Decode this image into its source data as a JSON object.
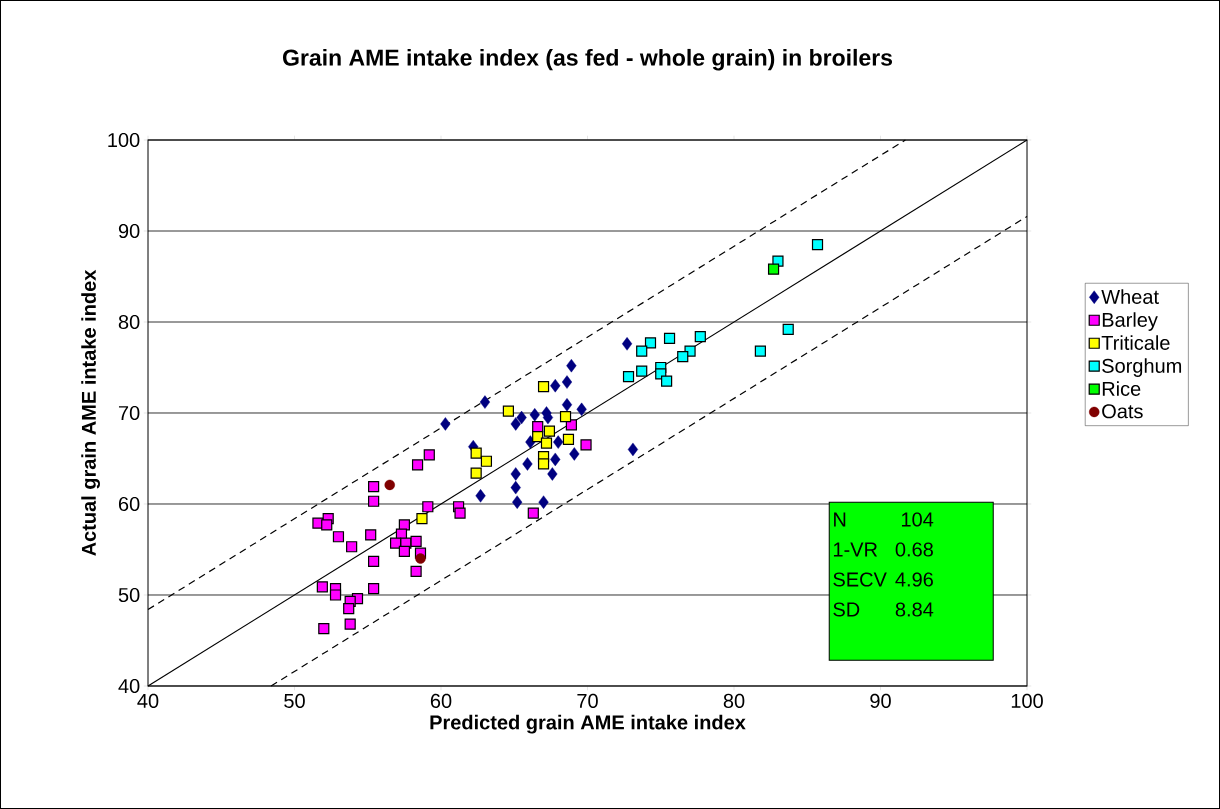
{
  "chart_data": {
    "type": "scatter",
    "title": "Grain AME intake index (as fed - whole grain) in broilers",
    "xlabel": "Predicted grain AME intake index",
    "ylabel": "Actual grain AME intake index",
    "xlim": [
      40,
      100
    ],
    "ylim": [
      40,
      100
    ],
    "xticks": [
      40,
      50,
      60,
      70,
      80,
      90,
      100
    ],
    "yticks": [
      40,
      50,
      60,
      70,
      80,
      90,
      100
    ],
    "grid": "y",
    "legend": "right",
    "annotations": [
      "N",
      "104",
      "1-VR",
      "0.68",
      "SECV",
      "4.96",
      "SD",
      "8.84"
    ],
    "series": [
      {
        "name": "Wheat",
        "color": "#000080",
        "marker": "diamond",
        "x": [
          60.3,
          63.0,
          68.9,
          68.6,
          67.8,
          72.7,
          62.2,
          65.1,
          65.5,
          66.4,
          67.2,
          67.3,
          68.6,
          69.6,
          66.1,
          68.0,
          69.1,
          67.8,
          65.9,
          65.1,
          67.6,
          65.1,
          62.7,
          65.2,
          67.0,
          73.1
        ],
        "values": [
          68.8,
          71.2,
          75.2,
          73.4,
          73.0,
          77.6,
          66.3,
          68.8,
          69.5,
          69.8,
          70.0,
          69.5,
          70.9,
          70.4,
          66.8,
          66.8,
          65.5,
          64.9,
          64.4,
          63.3,
          63.3,
          61.8,
          60.9,
          60.2,
          60.2,
          66.0
        ]
      },
      {
        "name": "Barley",
        "color": "#ff00ff",
        "marker": "square",
        "x": [
          59.2,
          58.4,
          55.4,
          55.4,
          59.1,
          61.2,
          61.3,
          66.3,
          51.6,
          52.3,
          52.2,
          53.0,
          53.9,
          55.2,
          57.5,
          57.3,
          56.9,
          57.6,
          58.3,
          57.5,
          58.6,
          55.4,
          58.3,
          51.9,
          52.8,
          52.8,
          55.4,
          54.3,
          53.8,
          53.7,
          52.0,
          53.8,
          69.9,
          66.6,
          68.9
        ],
        "values": [
          65.4,
          64.3,
          61.9,
          60.3,
          59.7,
          59.7,
          59.0,
          59.0,
          57.9,
          58.4,
          57.7,
          56.4,
          55.3,
          56.6,
          57.7,
          56.7,
          55.7,
          55.7,
          55.9,
          54.8,
          54.6,
          53.7,
          52.6,
          50.9,
          50.7,
          50.0,
          50.7,
          49.6,
          49.3,
          48.5,
          46.3,
          46.8,
          66.5,
          68.5,
          68.7
        ]
      },
      {
        "name": "Triticale",
        "color": "#ffff00",
        "marker": "square",
        "x": [
          67.0,
          64.6,
          68.5,
          67.4,
          66.6,
          67.2,
          68.7,
          67.0,
          67.0,
          62.4,
          63.1,
          62.4,
          58.7
        ],
        "values": [
          72.9,
          70.2,
          69.6,
          68.0,
          67.4,
          66.7,
          67.1,
          65.2,
          64.4,
          65.6,
          64.7,
          63.4,
          58.4
        ]
      },
      {
        "name": "Sorghum",
        "color": "#00ffff",
        "marker": "square",
        "x": [
          85.7,
          83.0,
          83.7,
          81.8,
          74.3,
          73.7,
          75.6,
          77.7,
          77.0,
          76.5,
          72.8,
          73.7,
          75.0,
          75.0,
          75.4
        ],
        "values": [
          88.5,
          86.7,
          79.2,
          76.8,
          77.7,
          76.8,
          78.2,
          78.4,
          76.8,
          76.2,
          74.0,
          74.6,
          75.0,
          74.3,
          73.5
        ]
      },
      {
        "name": "Rice",
        "color": "#00ff00",
        "marker": "square",
        "x": [
          82.7
        ],
        "values": [
          85.8
        ]
      },
      {
        "name": "Oats",
        "color": "#800000",
        "marker": "circle",
        "x": [
          56.5,
          58.6
        ],
        "values": [
          62.1,
          54.0
        ]
      },
      {
        "type": "line",
        "color": "#000000",
        "line_style": "solid",
        "marker": "none",
        "x": [
          40,
          100
        ],
        "values": [
          40,
          100
        ]
      },
      {
        "type": "line",
        "color": "#000000",
        "line_style": "dashed",
        "marker": "none",
        "x": [
          40,
          91.7
        ],
        "values": [
          48.4,
          100
        ]
      },
      {
        "type": "line",
        "color": "#000000",
        "line_style": "dashed",
        "marker": "none",
        "x": [
          48.4,
          100
        ],
        "values": [
          40,
          91.6
        ]
      }
    ]
  }
}
